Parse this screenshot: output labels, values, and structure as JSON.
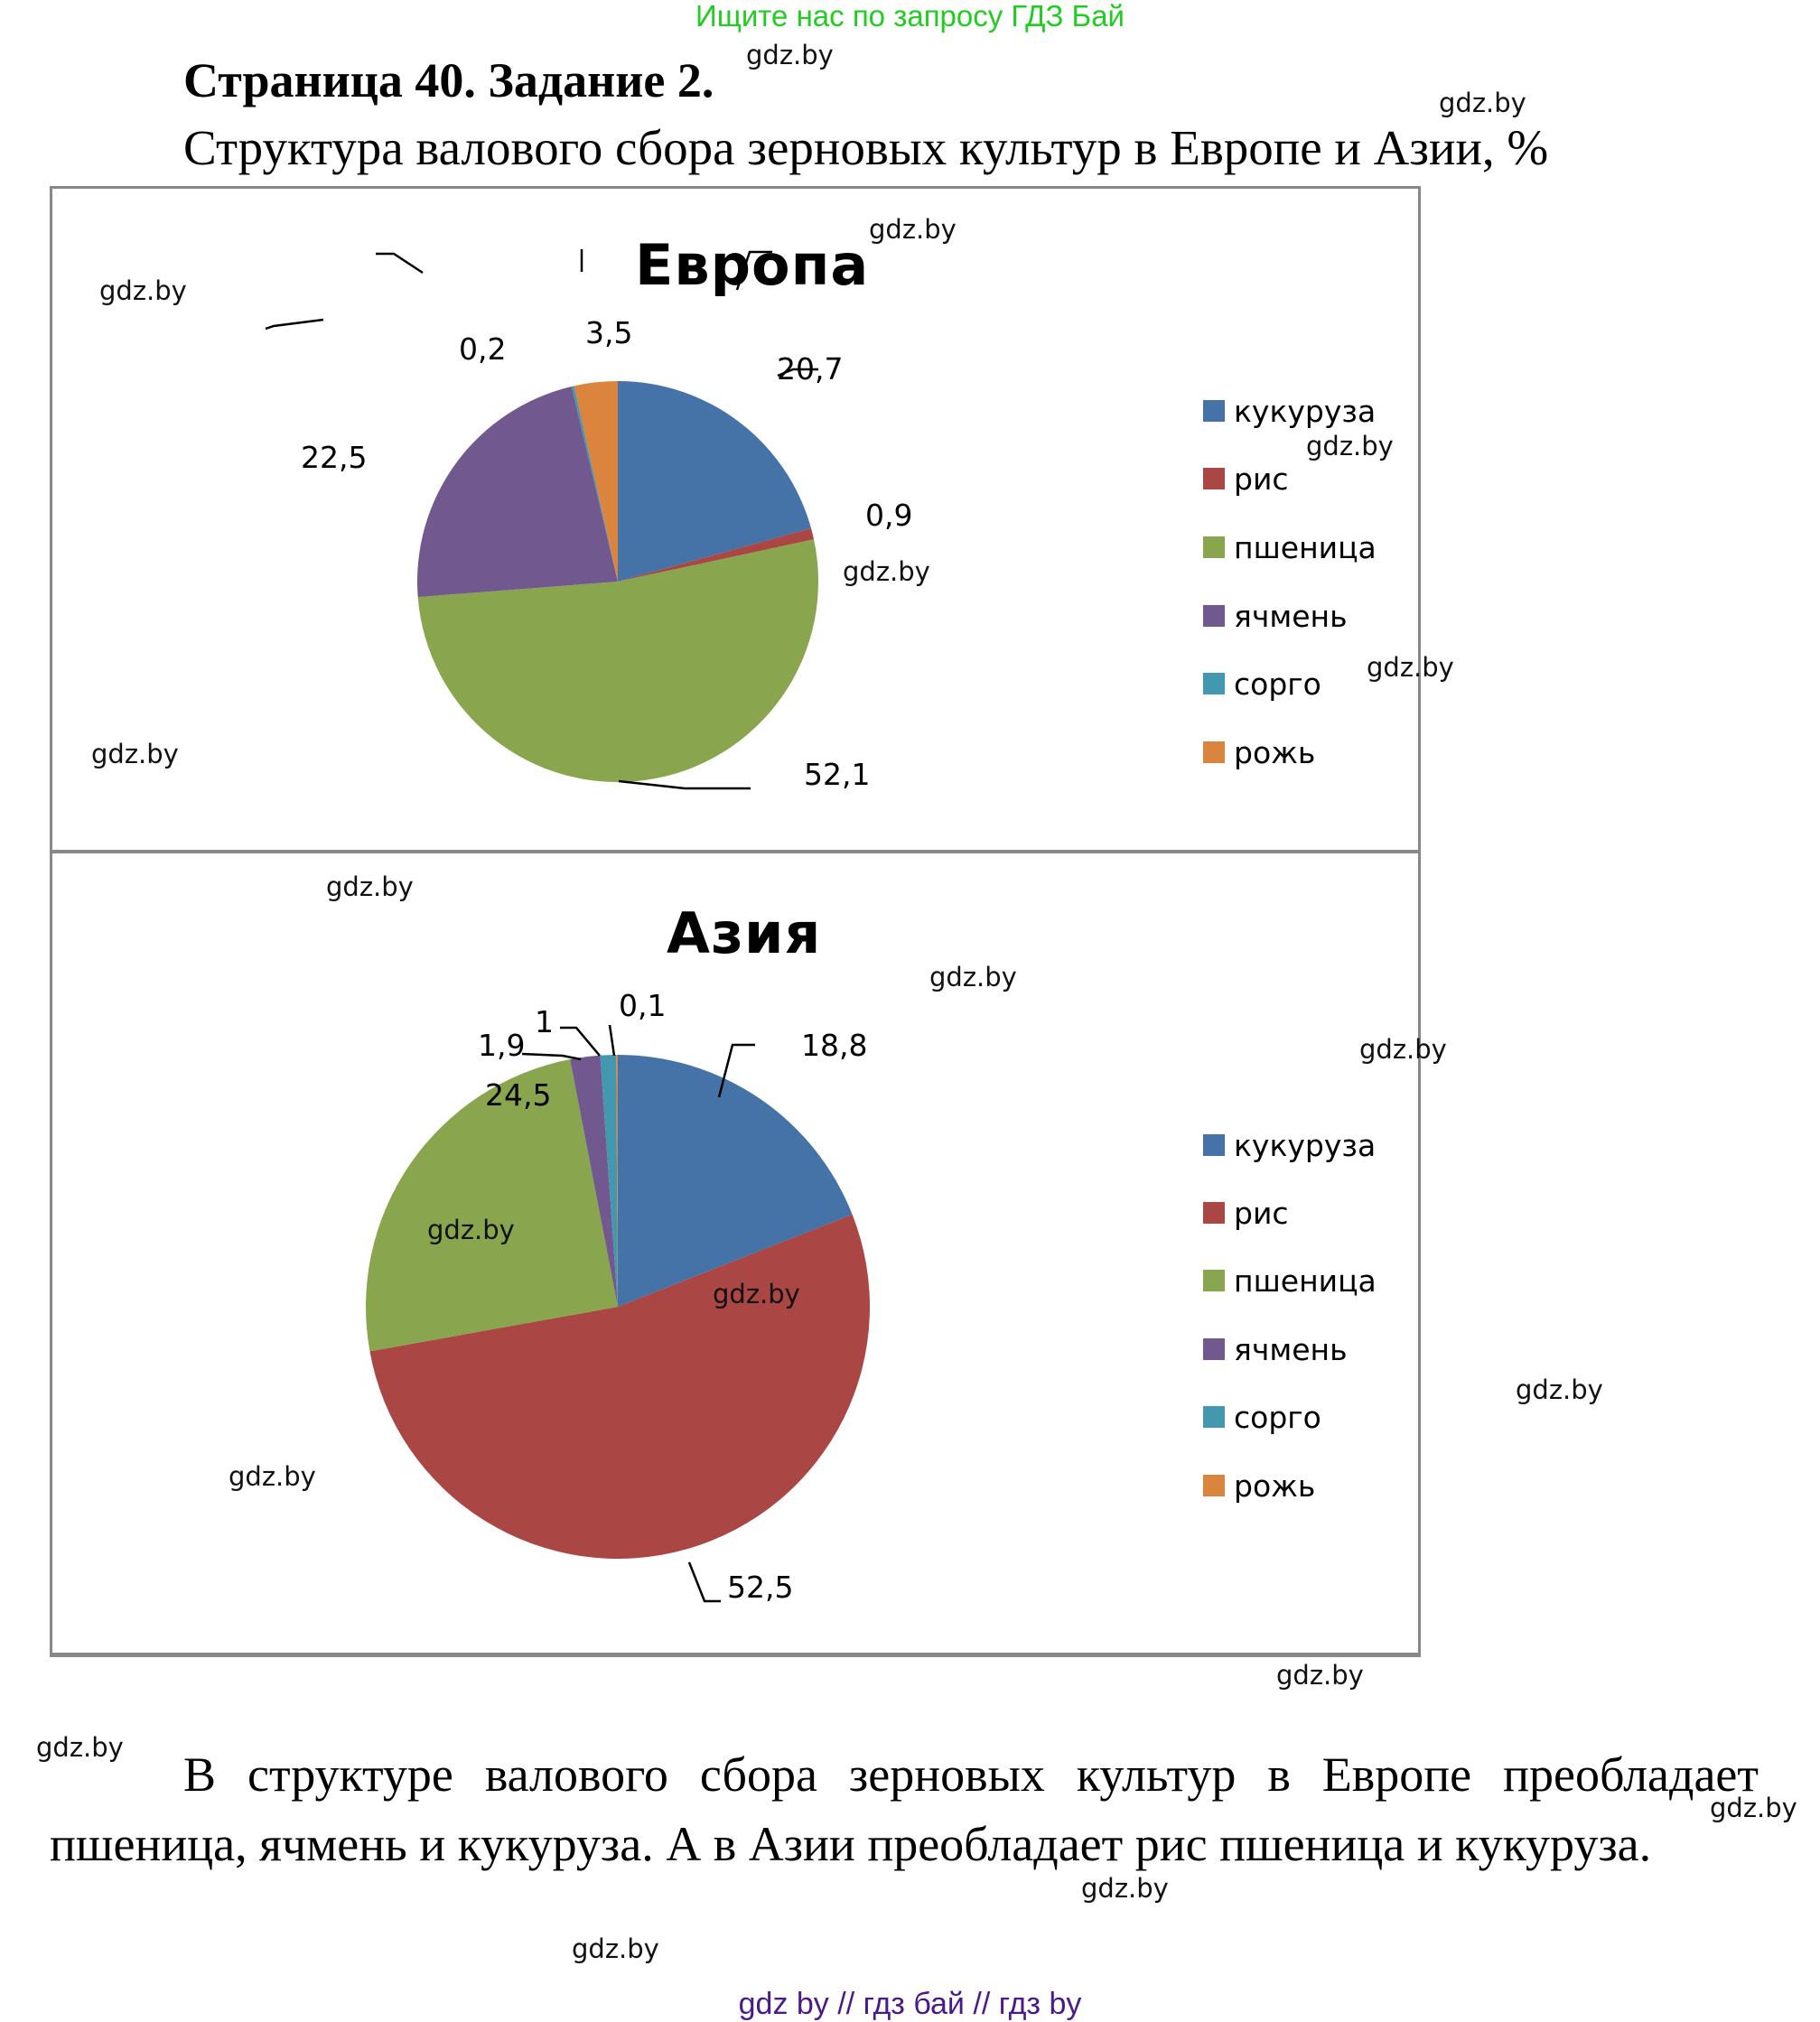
{
  "banner": {
    "text": "Ищите нас по запросу ГДЗ Бай",
    "color": "#22cc22"
  },
  "header": {
    "title": "Страница 40. Задание 2.",
    "subtitle": "Структура валового сбора зерновых культур в Европе и Азии, %"
  },
  "watermark": {
    "text": "gdz.by"
  },
  "colors": {
    "кукуруза": "#4572a7",
    "рис": "#aa4643",
    "пшеница": "#89a54e",
    "ячмень": "#71588f",
    "сорго": "#4198af",
    "рожь": "#db843d",
    "frame": "#888888"
  },
  "chart_data": [
    {
      "type": "pie",
      "title": "Европа",
      "categories": [
        "кукуруза",
        "рис",
        "пшеница",
        "ячмень",
        "сорго",
        "рожь"
      ],
      "values": [
        20.7,
        0.9,
        52.1,
        22.5,
        0.2,
        3.5
      ],
      "data_labels": [
        "20,7",
        "0,9",
        "52,1",
        "22,5",
        "0,2",
        "3,5"
      ],
      "legend_position": "right",
      "unit": "%"
    },
    {
      "type": "pie",
      "title": "Азия",
      "categories": [
        "кукуруза",
        "рис",
        "пшеница",
        "ячмень",
        "сорго",
        "рожь"
      ],
      "values": [
        18.8,
        52.5,
        24.5,
        1.9,
        1,
        0.1
      ],
      "data_labels": [
        "18,8",
        "52,5",
        "24,5",
        "1,9",
        "1",
        "0,1"
      ],
      "legend_position": "right",
      "unit": "%"
    }
  ],
  "legend": {
    "items": [
      "кукуруза",
      "рис",
      "пшеница",
      "ячмень",
      "сорго",
      "рожь"
    ]
  },
  "conclusion": {
    "text": "В структуре валового сбора зерновых культур в Европе преобладает пшеница, ячмень и кукуруза. А в Азии преобладает рис пшеница и кукуруза."
  },
  "footer": {
    "text": "gdz by  //  гдз бай  //  гдз by",
    "color": "#4b1a8a"
  }
}
